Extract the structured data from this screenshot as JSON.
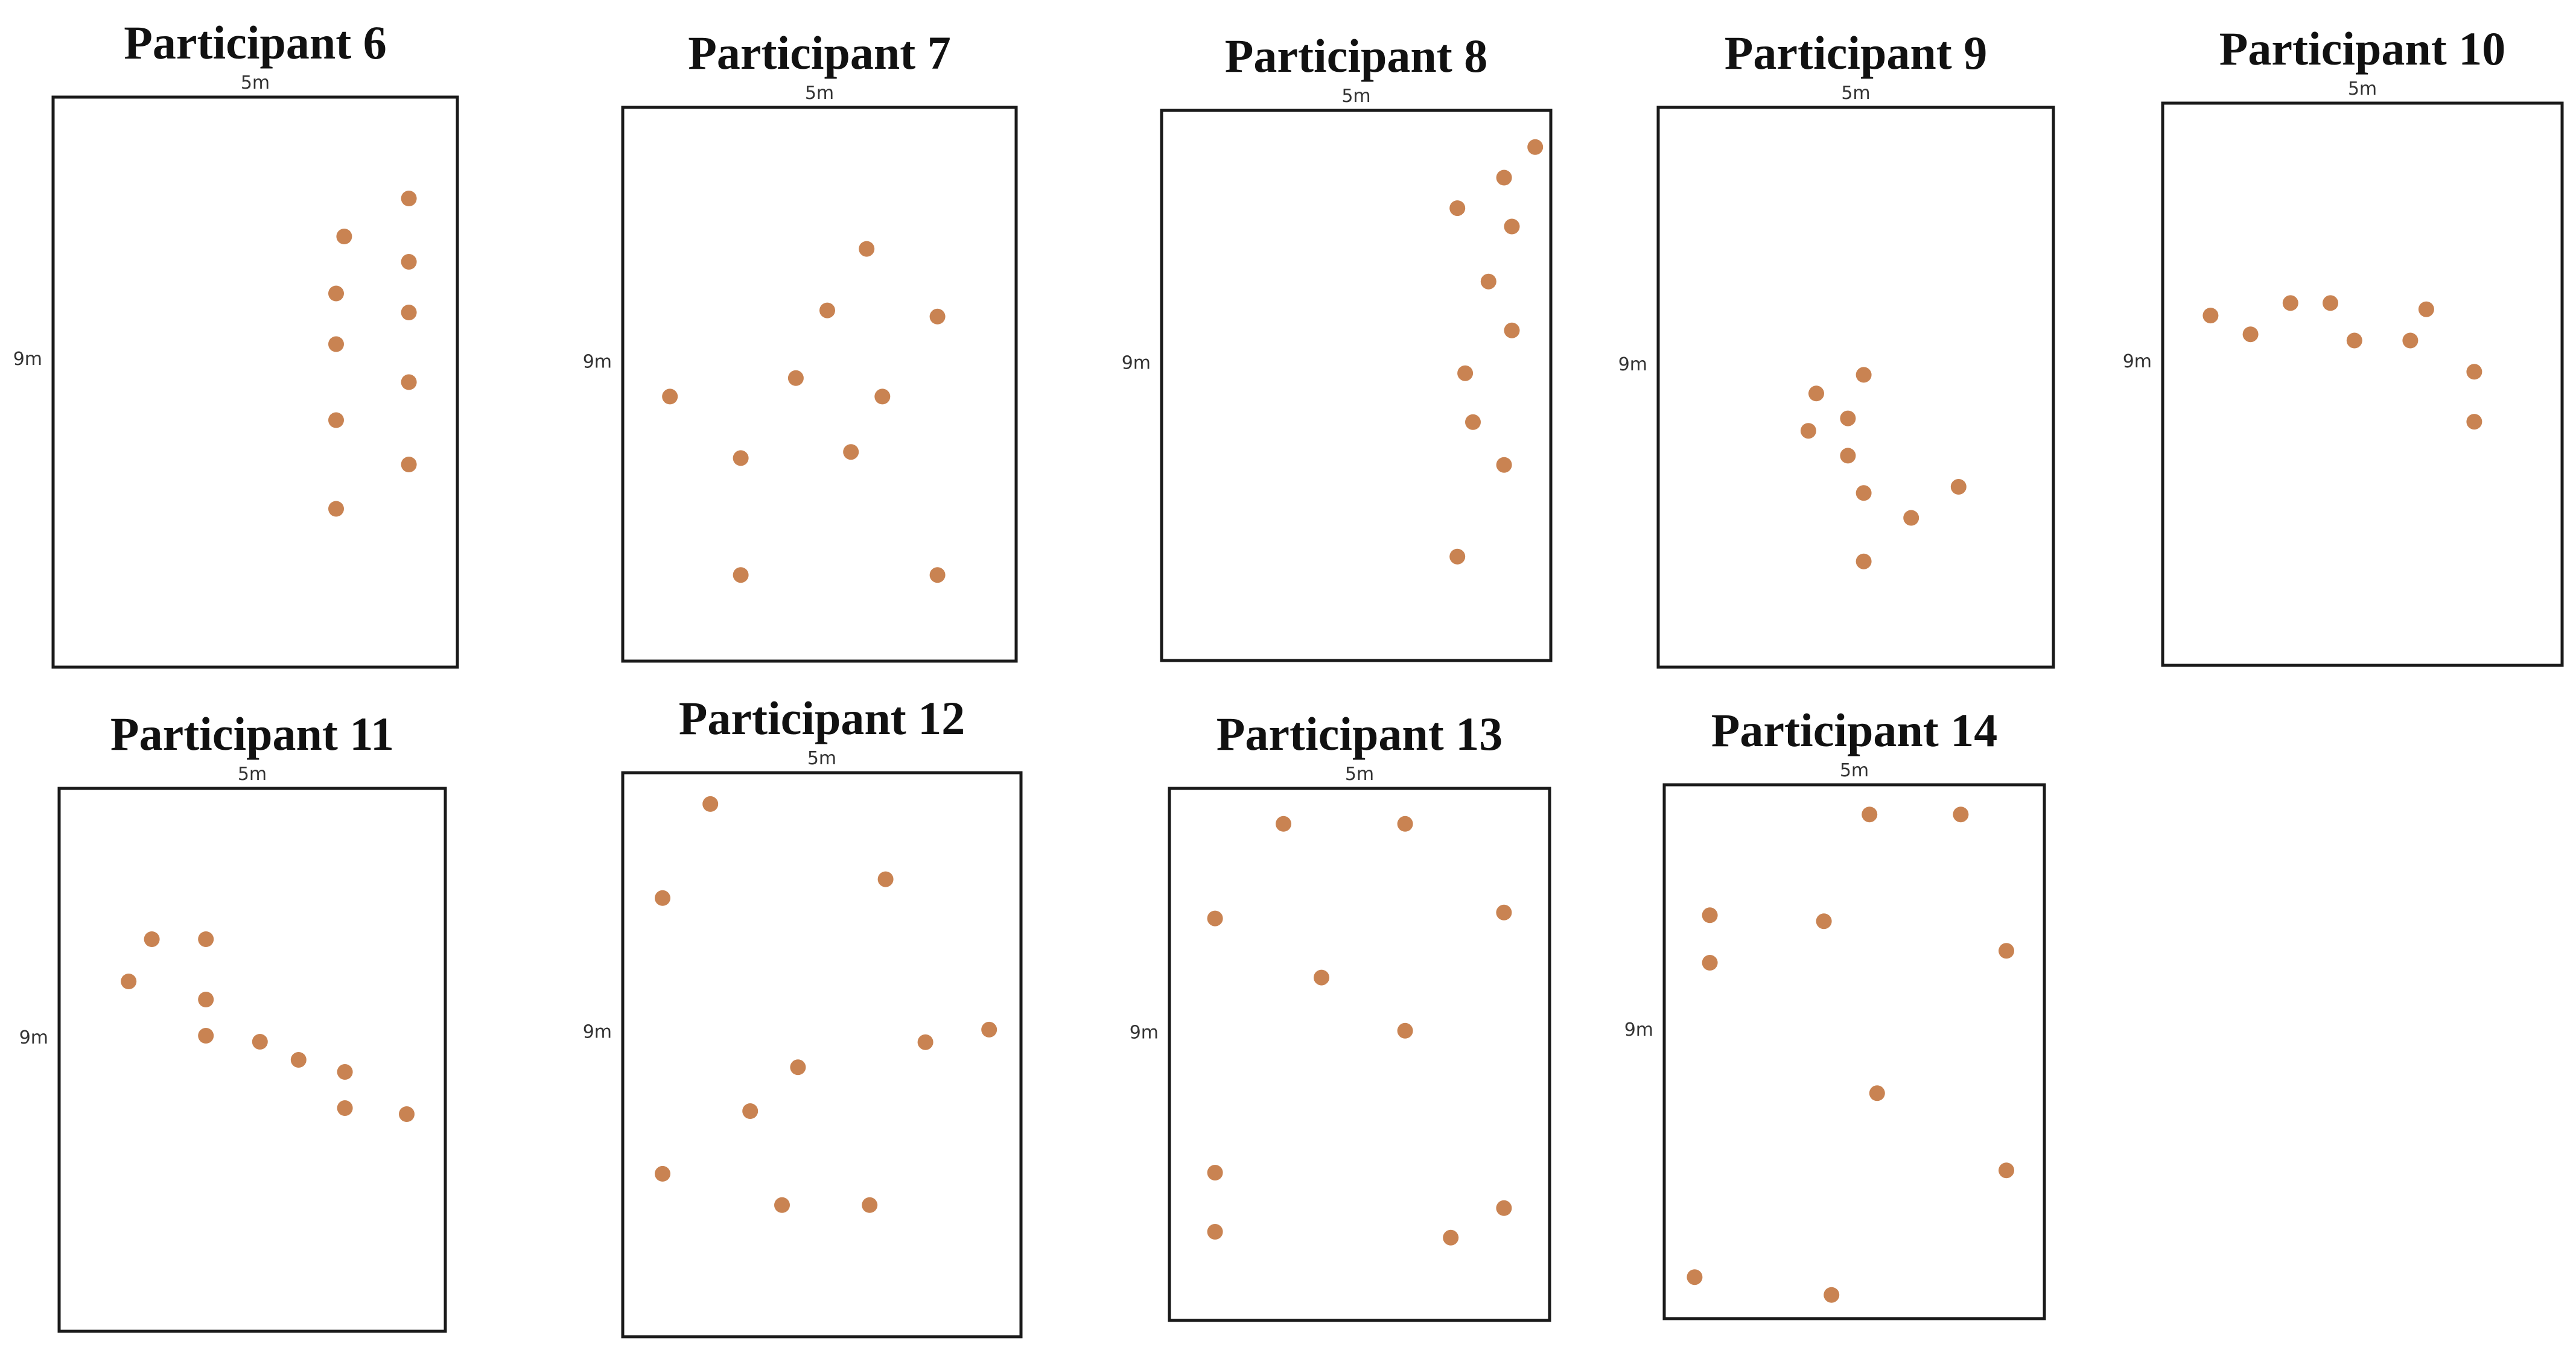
{
  "figure": {
    "marker_color": "#c98352",
    "outline_color": "#1a1a1a"
  },
  "chart_data": [
    {
      "type": "scatter",
      "title": "Participant 6",
      "xlabel": "5m",
      "ylabel": "9m",
      "xlim": [
        0,
        5
      ],
      "ylim": [
        0,
        9
      ],
      "points": [
        {
          "x": 4.4,
          "y": 7.4
        },
        {
          "x": 3.6,
          "y": 6.8
        },
        {
          "x": 4.4,
          "y": 6.4
        },
        {
          "x": 3.5,
          "y": 5.9
        },
        {
          "x": 4.4,
          "y": 5.6
        },
        {
          "x": 3.5,
          "y": 5.1
        },
        {
          "x": 4.4,
          "y": 4.5
        },
        {
          "x": 3.5,
          "y": 3.9
        },
        {
          "x": 4.4,
          "y": 3.2
        },
        {
          "x": 3.5,
          "y": 2.5
        }
      ]
    },
    {
      "type": "scatter",
      "title": "Participant 7",
      "xlabel": "5m",
      "ylabel": "9m",
      "xlim": [
        0,
        5
      ],
      "ylim": [
        0,
        9
      ],
      "points": [
        {
          "x": 3.1,
          "y": 6.7
        },
        {
          "x": 2.6,
          "y": 5.7
        },
        {
          "x": 4.0,
          "y": 5.6
        },
        {
          "x": 2.2,
          "y": 4.6
        },
        {
          "x": 0.6,
          "y": 4.3
        },
        {
          "x": 3.3,
          "y": 4.3
        },
        {
          "x": 1.5,
          "y": 3.3
        },
        {
          "x": 2.9,
          "y": 3.4
        },
        {
          "x": 1.5,
          "y": 1.4
        },
        {
          "x": 4.0,
          "y": 1.4
        }
      ]
    },
    {
      "type": "scatter",
      "title": "Participant 8",
      "xlabel": "5m",
      "ylabel": "9m",
      "xlim": [
        0,
        5
      ],
      "ylim": [
        0,
        9
      ],
      "points": [
        {
          "x": 4.8,
          "y": 8.4
        },
        {
          "x": 4.4,
          "y": 7.9
        },
        {
          "x": 3.8,
          "y": 7.4
        },
        {
          "x": 4.5,
          "y": 7.1
        },
        {
          "x": 4.2,
          "y": 6.2
        },
        {
          "x": 4.5,
          "y": 5.4
        },
        {
          "x": 3.9,
          "y": 4.7
        },
        {
          "x": 4.0,
          "y": 3.9
        },
        {
          "x": 4.4,
          "y": 3.2
        },
        {
          "x": 3.8,
          "y": 1.7
        }
      ]
    },
    {
      "type": "scatter",
      "title": "Participant 9",
      "xlabel": "5m",
      "ylabel": "9m",
      "xlim": [
        0,
        5
      ],
      "ylim": [
        0,
        9
      ],
      "points": [
        {
          "x": 2.6,
          "y": 4.7
        },
        {
          "x": 2.0,
          "y": 4.4
        },
        {
          "x": 2.4,
          "y": 4.0
        },
        {
          "x": 1.9,
          "y": 3.8
        },
        {
          "x": 2.4,
          "y": 3.4
        },
        {
          "x": 2.6,
          "y": 2.8
        },
        {
          "x": 3.8,
          "y": 2.9
        },
        {
          "x": 3.2,
          "y": 2.4
        },
        {
          "x": 2.6,
          "y": 1.7
        }
      ]
    },
    {
      "type": "scatter",
      "title": "Participant 10",
      "xlabel": "5m",
      "ylabel": "9m",
      "xlim": [
        0,
        5
      ],
      "ylim": [
        0,
        9
      ],
      "points": [
        {
          "x": 0.6,
          "y": 5.6
        },
        {
          "x": 1.1,
          "y": 5.3
        },
        {
          "x": 1.6,
          "y": 5.8
        },
        {
          "x": 2.1,
          "y": 5.8
        },
        {
          "x": 2.4,
          "y": 5.2
        },
        {
          "x": 3.1,
          "y": 5.2
        },
        {
          "x": 3.3,
          "y": 5.7
        },
        {
          "x": 3.9,
          "y": 4.7
        },
        {
          "x": 3.9,
          "y": 3.9
        }
      ]
    },
    {
      "type": "scatter",
      "title": "Participant 11",
      "xlabel": "5m",
      "ylabel": "9m",
      "xlim": [
        0,
        5
      ],
      "ylim": [
        0,
        9
      ],
      "points": [
        {
          "x": 1.2,
          "y": 6.5
        },
        {
          "x": 1.9,
          "y": 6.5
        },
        {
          "x": 0.9,
          "y": 5.8
        },
        {
          "x": 1.9,
          "y": 5.5
        },
        {
          "x": 1.9,
          "y": 4.9
        },
        {
          "x": 2.6,
          "y": 4.8
        },
        {
          "x": 3.1,
          "y": 4.5
        },
        {
          "x": 3.7,
          "y": 4.3
        },
        {
          "x": 3.7,
          "y": 3.7
        },
        {
          "x": 4.5,
          "y": 3.6
        }
      ]
    },
    {
      "type": "scatter",
      "title": "Participant 12",
      "xlabel": "5m",
      "ylabel": "9m",
      "xlim": [
        0,
        5
      ],
      "ylim": [
        0,
        9
      ],
      "points": [
        {
          "x": 1.1,
          "y": 8.5
        },
        {
          "x": 0.5,
          "y": 7.0
        },
        {
          "x": 3.3,
          "y": 7.3
        },
        {
          "x": 3.8,
          "y": 4.7
        },
        {
          "x": 4.6,
          "y": 4.9
        },
        {
          "x": 2.2,
          "y": 4.3
        },
        {
          "x": 1.6,
          "y": 3.6
        },
        {
          "x": 0.5,
          "y": 2.6
        },
        {
          "x": 2.0,
          "y": 2.1
        },
        {
          "x": 3.1,
          "y": 2.1
        }
      ]
    },
    {
      "type": "scatter",
      "title": "Participant 13",
      "xlabel": "5m",
      "ylabel": "9m",
      "xlim": [
        0,
        5
      ],
      "ylim": [
        0,
        9
      ],
      "points": [
        {
          "x": 1.5,
          "y": 8.4
        },
        {
          "x": 3.1,
          "y": 8.4
        },
        {
          "x": 0.6,
          "y": 6.8
        },
        {
          "x": 4.4,
          "y": 6.9
        },
        {
          "x": 2.0,
          "y": 5.8
        },
        {
          "x": 3.1,
          "y": 4.9
        },
        {
          "x": 0.6,
          "y": 2.5
        },
        {
          "x": 0.6,
          "y": 1.5
        },
        {
          "x": 4.4,
          "y": 1.9
        },
        {
          "x": 3.7,
          "y": 1.4
        }
      ]
    },
    {
      "type": "scatter",
      "title": "Participant 14",
      "xlabel": "5m",
      "ylabel": "9m",
      "xlim": [
        0,
        5
      ],
      "ylim": [
        0,
        9
      ],
      "points": [
        {
          "x": 2.7,
          "y": 8.5
        },
        {
          "x": 3.9,
          "y": 8.5
        },
        {
          "x": 0.6,
          "y": 6.8
        },
        {
          "x": 2.1,
          "y": 6.7
        },
        {
          "x": 4.5,
          "y": 6.2
        },
        {
          "x": 0.6,
          "y": 6.0
        },
        {
          "x": 2.8,
          "y": 3.8
        },
        {
          "x": 4.5,
          "y": 2.5
        },
        {
          "x": 0.4,
          "y": 0.7
        },
        {
          "x": 2.2,
          "y": 0.4
        }
      ]
    }
  ]
}
